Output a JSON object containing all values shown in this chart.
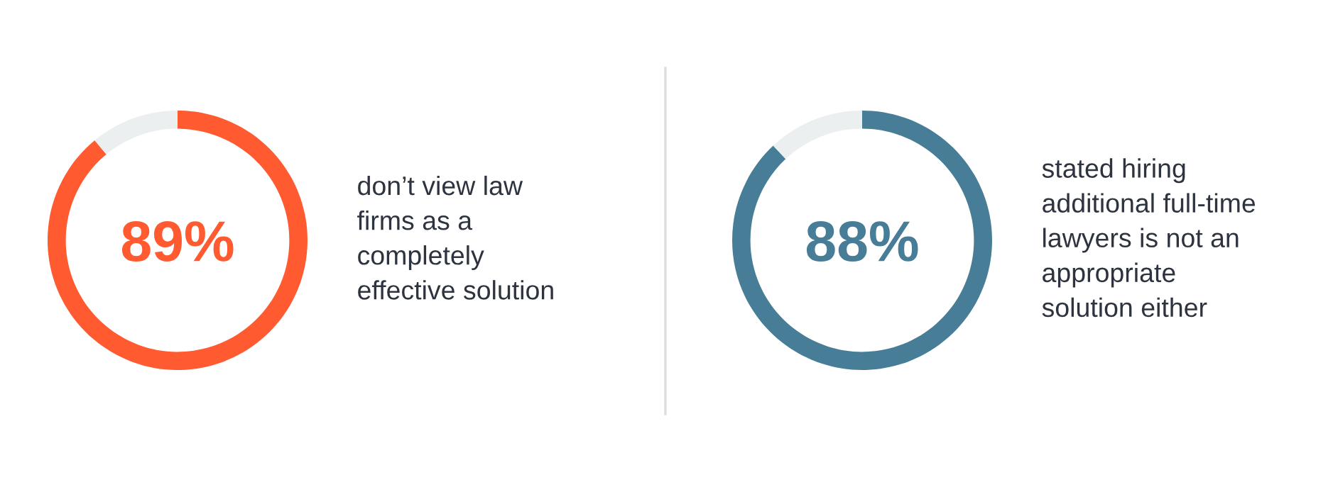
{
  "chart_data": [
    {
      "type": "donut",
      "categories": [
        null,
        null
      ],
      "values": [
        89,
        11
      ],
      "colors": [
        "#ff5a30",
        "#eceff0"
      ],
      "value_labels": [
        "89%",
        null
      ],
      "annotations": [
        "don’t view law\nfirms as a\ncompletely\neffective solution"
      ]
    },
    {
      "type": "donut",
      "categories": [
        null,
        null
      ],
      "values": [
        88,
        12
      ],
      "colors": [
        "#477d96",
        "#eceff0"
      ],
      "value_labels": [
        "88%",
        null
      ],
      "annotations": [
        "stated hiring\nadditional full-time\nlawyers is not an\nappropriate\nsolution either"
      ]
    }
  ]
}
